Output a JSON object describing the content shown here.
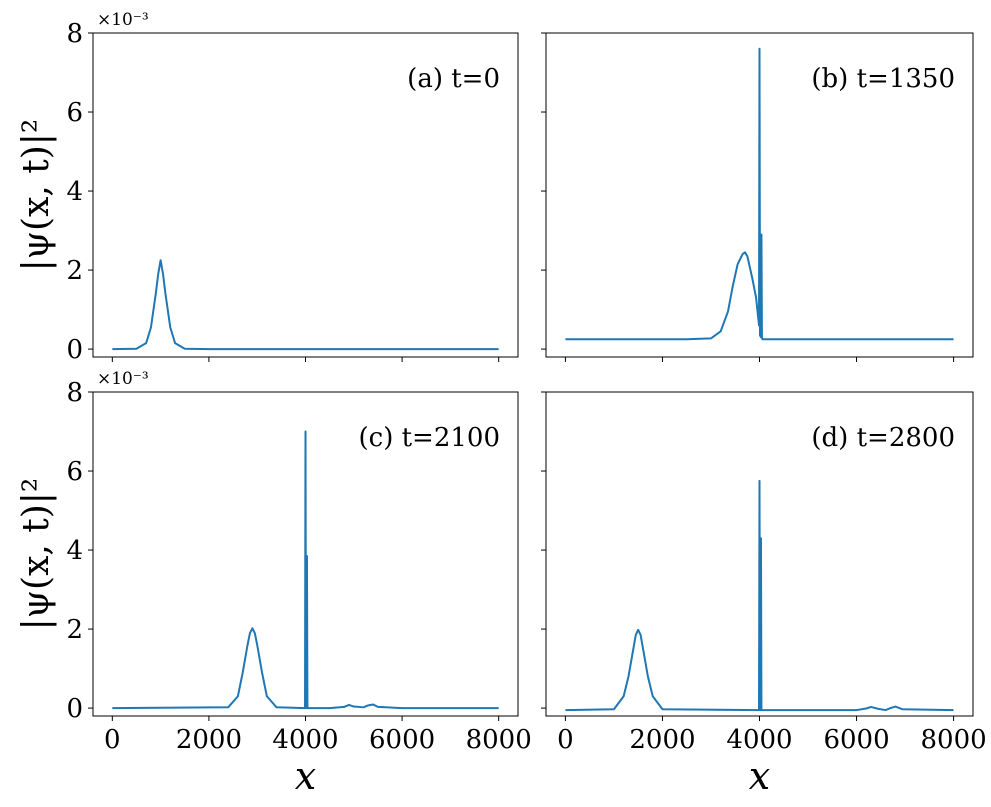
{
  "chart_data": {
    "type": "line",
    "layout": "2x2 grid, shared x and y axes",
    "color": "#1f77b4",
    "xlabel": "x",
    "ylabel": "|ψ(x, t)|²",
    "y_offset_text": "×10⁻³",
    "xlim": [
      -400,
      8400
    ],
    "ylim": [
      -0.2,
      8.0
    ],
    "xticks": [
      0,
      2000,
      4000,
      6000,
      8000
    ],
    "yticks": [
      0,
      2,
      4,
      6,
      8
    ],
    "xtick_labels": [
      "0",
      "2000",
      "4000",
      "6000",
      "8000"
    ],
    "ytick_labels": [
      "0",
      "2",
      "4",
      "6",
      "8"
    ],
    "panels": [
      {
        "label": "(a) t=0",
        "series": [
          {
            "x": [
              0,
              500,
              700,
              800,
              900,
              950,
              1000,
              1050,
              1100,
              1200,
              1300,
              1500,
              2000,
              4000,
              6000,
              8000
            ],
            "y": [
              0.0,
              0.01,
              0.15,
              0.55,
              1.4,
              1.9,
              2.25,
              1.9,
              1.4,
              0.55,
              0.15,
              0.01,
              0.0,
              0.0,
              0.0,
              0.0
            ]
          }
        ]
      },
      {
        "label": "(b) t=1350",
        "series": [
          {
            "x": [
              0,
              2500,
              3000,
              3200,
              3350,
              3450,
              3550,
              3650,
              3700,
              3750,
              3850,
              3930,
              3990,
              4000,
              4010,
              4030,
              4040,
              4050,
              4060,
              4100,
              6000,
              8000
            ],
            "y": [
              0.25,
              0.25,
              0.27,
              0.45,
              0.95,
              1.6,
              2.15,
              2.4,
              2.45,
              2.35,
              1.8,
              1.3,
              0.6,
              7.6,
              0.35,
              0.3,
              2.9,
              0.3,
              0.25,
              0.25,
              0.25,
              0.25
            ]
          }
        ]
      },
      {
        "label": "(c) t=2100",
        "series": [
          {
            "x": [
              0,
              2400,
              2600,
              2700,
              2800,
              2850,
              2900,
              2950,
              3000,
              3100,
              3200,
              3400,
              3990,
              4000,
              4010,
              4020,
              4030,
              4040,
              4050,
              4500,
              4800,
              4900,
              5000,
              5200,
              5300,
              5400,
              5500,
              6000,
              8000
            ],
            "y": [
              0.0,
              0.02,
              0.3,
              0.9,
              1.6,
              1.9,
              2.02,
              1.9,
              1.6,
              0.9,
              0.3,
              0.02,
              0.0,
              7.0,
              0.0,
              0.0,
              3.85,
              0.0,
              0.0,
              0.0,
              0.03,
              0.08,
              0.04,
              0.02,
              0.07,
              0.09,
              0.03,
              0.0,
              0.0
            ]
          }
        ]
      },
      {
        "label": "(d) t=2800",
        "series": [
          {
            "x": [
              0,
              1000,
              1200,
              1300,
              1400,
              1450,
              1500,
              1550,
              1600,
              1700,
              1800,
              2000,
              3990,
              4000,
              4010,
              4020,
              4030,
              4040,
              4050,
              6000,
              6200,
              6300,
              6450,
              6600,
              6700,
              6800,
              6950,
              8000
            ],
            "y": [
              -0.05,
              -0.03,
              0.3,
              0.8,
              1.5,
              1.85,
              1.98,
              1.85,
              1.5,
              0.8,
              0.3,
              -0.03,
              -0.05,
              5.75,
              -0.05,
              -0.05,
              4.3,
              -0.05,
              -0.05,
              -0.05,
              -0.01,
              0.03,
              -0.02,
              -0.05,
              0.0,
              0.04,
              -0.03,
              -0.05
            ]
          }
        ]
      }
    ]
  }
}
